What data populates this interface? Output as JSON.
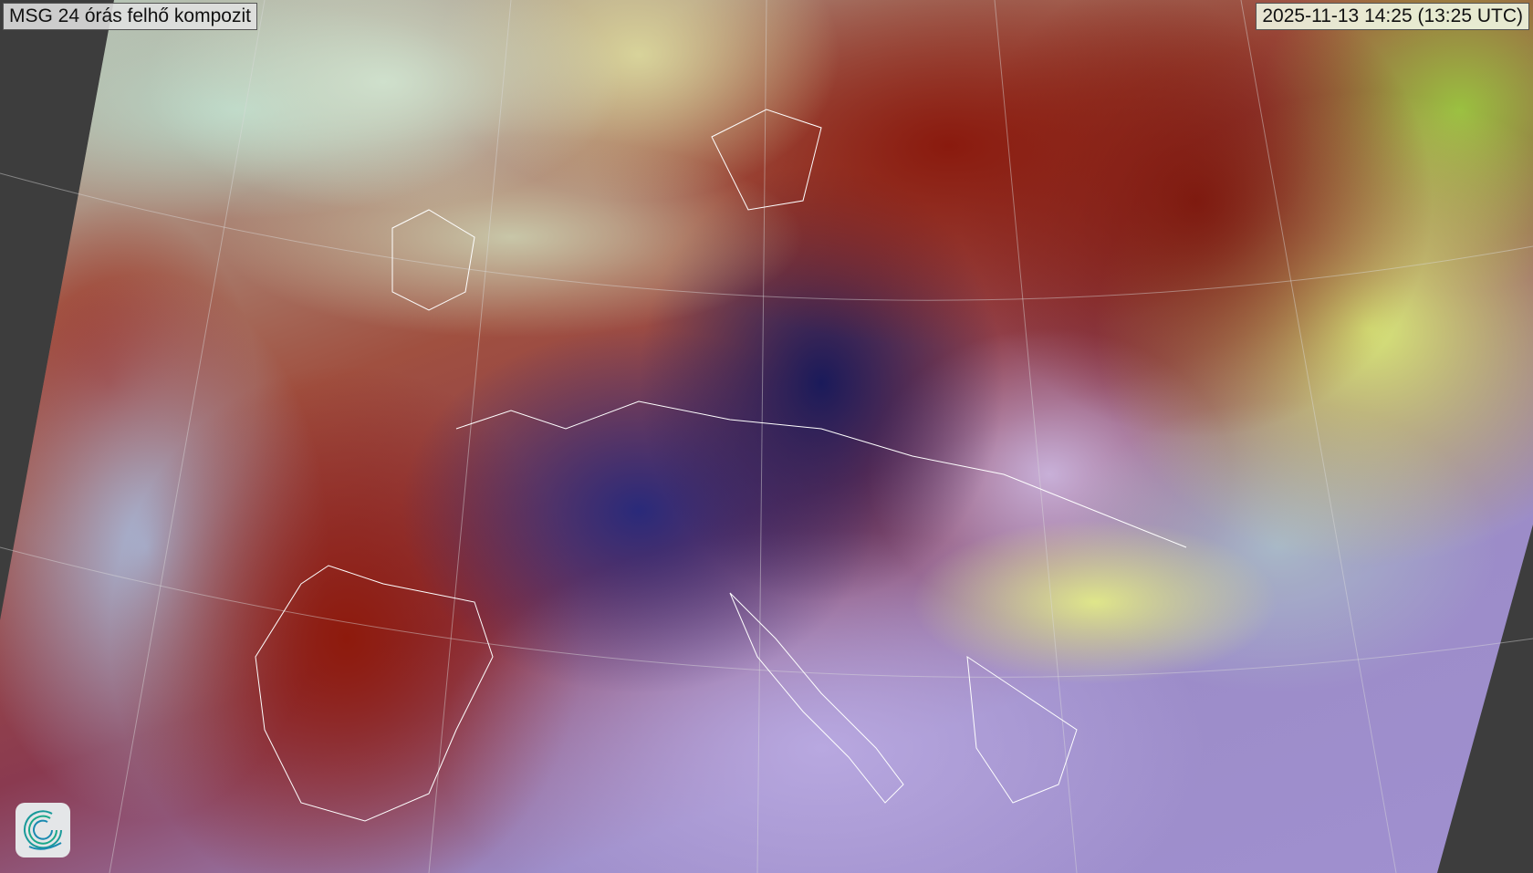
{
  "title": "MSG 24 órás felhő kompozit",
  "timestamp": "2025-11-13 14:25 (13:25 UTC)",
  "logo": {
    "icon": "swirl-logo-icon",
    "colors": [
      "#1aa88a",
      "#1a8ab0"
    ]
  },
  "map": {
    "type": "satellite-composite",
    "background": "#3d3d3d",
    "border_color": "#ffffff"
  }
}
